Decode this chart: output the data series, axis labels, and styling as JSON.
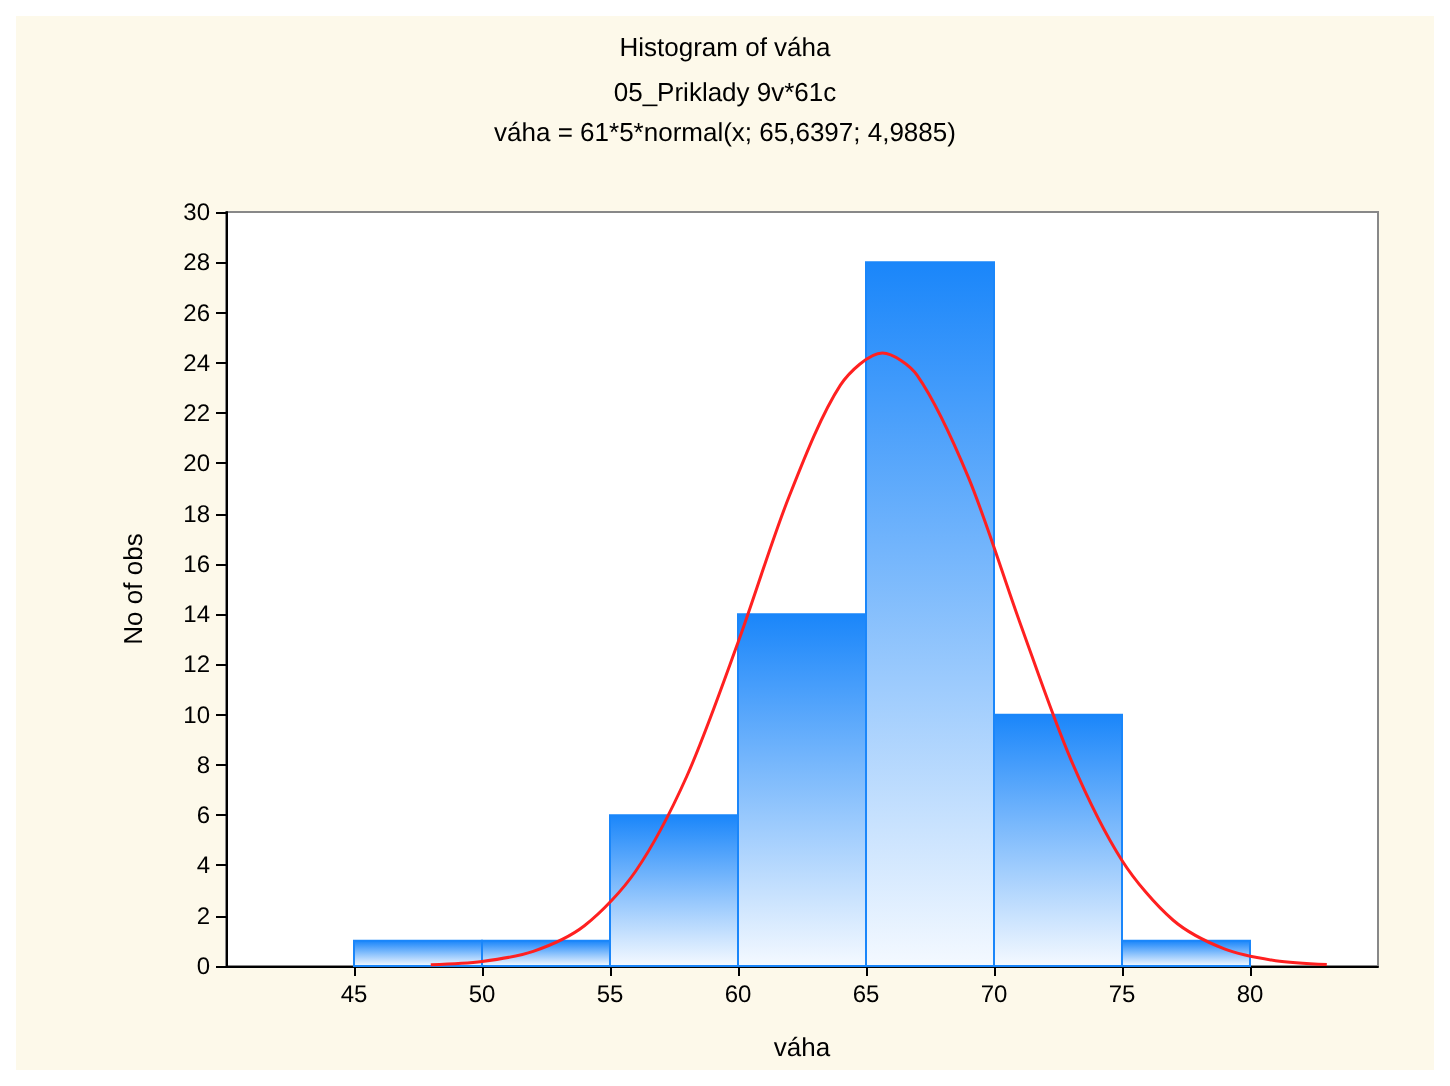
{
  "chart_data": {
    "type": "histogram",
    "title": "Histogram of váha",
    "subtitle": "05_Priklady 9v*61c\nváha = 61*5*normal(x; 65,6397; 4,9885)",
    "xlabel": "váha",
    "ylabel": "No of obs",
    "bins": [
      45,
      50,
      55,
      60,
      65,
      70,
      75,
      80
    ],
    "values": [
      1,
      1,
      6,
      14,
      28,
      10,
      1
    ],
    "color": "#1a86fa",
    "series": [
      {
        "type": "line",
        "color": "#ff2020",
        "x": [
          48,
          50,
          52,
          54,
          56,
          58,
          60,
          62,
          64,
          65.64,
          67,
          69,
          71,
          73,
          75,
          77,
          79,
          81,
          83
        ],
        "values": [
          0.05,
          0.18,
          0.58,
          1.6,
          3.77,
          7.55,
          12.87,
          18.69,
          23.11,
          24.39,
          23.5,
          19.44,
          13.7,
          8.22,
          4.2,
          1.82,
          0.68,
          0.21,
          0.06
        ]
      }
    ],
    "xlim": [
      40,
      85
    ],
    "xticks": [
      45,
      50,
      55,
      60,
      65,
      70,
      75,
      80
    ],
    "ylim": [
      0,
      30
    ],
    "yticks": [
      0,
      2,
      4,
      6,
      8,
      10,
      12,
      14,
      16,
      18,
      20,
      22,
      24,
      26,
      28,
      30
    ],
    "grid": false,
    "marker": "none",
    "line_style": "solid"
  }
}
